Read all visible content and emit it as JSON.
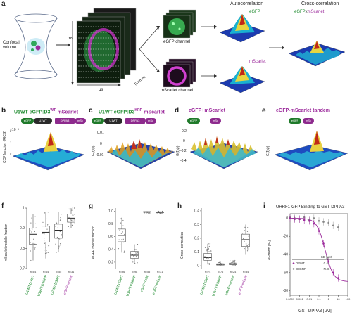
{
  "panel_a": {
    "letter": "a",
    "confocal": "Confocal volume",
    "ms": "ms",
    "us": "μs",
    "frames": "Frames",
    "egfp_channel": "eGFP channel",
    "mscarlet_channel": "mScarlet channel",
    "autocorrelation": "Autocorrelation",
    "crosscorrelation": "Cross-correlation",
    "egfp_label": "eGFP",
    "mscarlet_label": "mScarlet",
    "cc_egfp": "eGFP",
    "cc_x": "x",
    "cc_mscarlet": "mScarlet"
  },
  "panel_b": {
    "letter": "b",
    "title_a": "U1WT-eGFP:D3",
    "title_sup": "WT",
    "title_b": "-mScarlet",
    "yaxis": "CCF function (RICS)",
    "pills": [
      "eGFP",
      "U1WT",
      "DPPA3",
      "mSc"
    ],
    "scale": "×10⁻³"
  },
  "panel_c": {
    "letter": "c",
    "title_a": "U1WT-eGFP:D3",
    "title_sup": "KRP",
    "title_b": "-mScarlet",
    "yaxis": "G(ξ,ψ)",
    "pills": [
      "eGFP",
      "U1WT",
      "DPPA3",
      "mSc"
    ],
    "ticks": [
      "0.01",
      "0",
      "-0.01"
    ]
  },
  "panel_d": {
    "letter": "d",
    "title": "eGFP+mScarlet",
    "yaxis": "G(ξ,ψ)",
    "pills": [
      "eGFP",
      "mSc"
    ],
    "ticks": [
      "0.2",
      "0",
      "-0.2",
      "-0.4"
    ]
  },
  "panel_e": {
    "letter": "e",
    "title": "eGFP-mScarlet tandem",
    "yaxis": "G(ξ,ψ)",
    "pills": [
      "eGFP",
      "mSc"
    ]
  },
  "chart_f": {
    "letter": "f",
    "ylabel": "mScarlet mobile fraction",
    "yticks": [
      "1",
      "0.9",
      "0.8",
      "0.7"
    ],
    "ns": [
      "n=84",
      "n=64",
      "n=55",
      "n=31"
    ],
    "categories": [
      "U1WT:D3WT",
      "U1WT:D3KRP",
      "U1WT:D3WT",
      "eGFP-mScar"
    ],
    "boxes": [
      {
        "q1": 0.82,
        "median": 0.87,
        "q3": 0.9,
        "lo": 0.74,
        "hi": 0.97,
        "color": "#1d8a2e"
      },
      {
        "q1": 0.83,
        "median": 0.88,
        "q3": 0.91,
        "lo": 0.75,
        "hi": 0.98,
        "color": "#1d8a2e"
      },
      {
        "q1": 0.85,
        "median": 0.89,
        "q3": 0.92,
        "lo": 0.78,
        "hi": 0.98,
        "color": "#1d8a2e"
      },
      {
        "q1": 0.93,
        "median": 0.95,
        "q3": 0.97,
        "lo": 0.9,
        "hi": 1.0,
        "color": "#9c2a9c"
      }
    ]
  },
  "chart_g": {
    "letter": "g",
    "ylabel": "eGFP mobile fraction",
    "yticks": [
      "1.0",
      "0.8",
      "0.6",
      "0.4",
      "0.2"
    ],
    "ns": [
      "n=96",
      "n=98",
      "n=55",
      "n=31"
    ],
    "categories": [
      "U1WT:D3WT",
      "U1WT:D3KRP",
      "eGFP+mSc",
      "eGFP-mScar"
    ],
    "boxes": [
      {
        "q1": 0.52,
        "median": 0.62,
        "q3": 0.72,
        "lo": 0.35,
        "hi": 0.9,
        "color": "#1d8a2e"
      },
      {
        "q1": 0.26,
        "median": 0.31,
        "q3": 0.37,
        "lo": 0.18,
        "hi": 0.48,
        "color": "#1d8a2e"
      },
      {
        "q1": 0.985,
        "median": 0.99,
        "q3": 0.995,
        "lo": 0.97,
        "hi": 1.0,
        "color": "#1d8a2e"
      },
      {
        "q1": 0.975,
        "median": 0.985,
        "q3": 0.99,
        "lo": 0.96,
        "hi": 1.0,
        "color": "#1d8a2e"
      }
    ]
  },
  "chart_h": {
    "letter": "h",
    "ylabel": "Cross-correlation",
    "yticks": [
      "0.4",
      "0.3",
      "0.2",
      "0.1",
      "0"
    ],
    "ns": [
      "n=74",
      "n=76",
      "n=24",
      "n=34"
    ],
    "categories": [
      "U1WT:D3WT",
      "U1WT:D3KRP",
      "eGFP+mScar",
      "eGFP-mScar"
    ],
    "boxes": [
      {
        "q1": 0.04,
        "median": 0.06,
        "q3": 0.09,
        "lo": 0.01,
        "hi": 0.16,
        "color": "#1d8a2e"
      },
      {
        "q1": 0.005,
        "median": 0.01,
        "q3": 0.015,
        "lo": 0.0,
        "hi": 0.03,
        "color": "#1d8a2e"
      },
      {
        "q1": 0.008,
        "median": 0.012,
        "q3": 0.02,
        "lo": 0.0,
        "hi": 0.04,
        "color": "#1d8a2e"
      },
      {
        "q1": 0.14,
        "median": 0.19,
        "q3": 0.23,
        "lo": 0.08,
        "hi": 0.3,
        "color": "#9c2a9c"
      }
    ]
  },
  "chart_i": {
    "letter": "i",
    "title": "UHRF1-GFP Binding to GST-DPPA3",
    "ylabel": "ΔFNorm [‰]",
    "xlabel": "GST-DPPA3 [μM]",
    "yticks": [
      "0",
      "-20",
      "-40",
      "-60",
      "-80"
    ],
    "xticks": [
      "0.0001",
      "0.001",
      "0.01",
      "0.1",
      "1",
      "10",
      "100"
    ],
    "kd_header": "KD [μM]",
    "legend": [
      {
        "name": "D3WT",
        "kd": "0.44",
        "color": "#9c2a9c"
      },
      {
        "name": "D3KRP",
        "kd": "N.D.",
        "color": "#888888"
      }
    ],
    "wt_points": [
      [
        0.0001,
        0
      ],
      [
        0.0003,
        -1
      ],
      [
        0.001,
        -1
      ],
      [
        0.003,
        -2
      ],
      [
        0.01,
        -3
      ],
      [
        0.03,
        -6
      ],
      [
        0.1,
        -14
      ],
      [
        0.3,
        -28
      ],
      [
        1,
        -48
      ],
      [
        3,
        -60
      ],
      [
        10,
        -66
      ]
    ],
    "krp_points": [
      [
        0.0001,
        1
      ],
      [
        0.0003,
        0
      ],
      [
        0.001,
        -1
      ],
      [
        0.003,
        1
      ],
      [
        0.01,
        -2
      ],
      [
        0.03,
        0
      ],
      [
        0.1,
        -3
      ],
      [
        0.3,
        -4
      ],
      [
        1,
        -5
      ],
      [
        3,
        -8
      ],
      [
        10,
        -10
      ]
    ]
  }
}
